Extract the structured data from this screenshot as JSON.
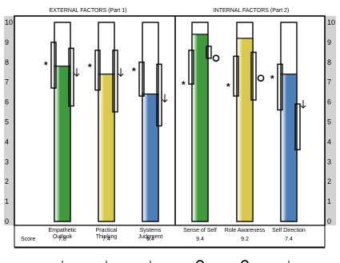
{
  "groups": [
    {
      "label": "EXTERNAL FACTORS (Part 1)"
    },
    {
      "label": "INTERNAL FACTORS (Part 2)"
    }
  ],
  "chart_data": {
    "type": "bar",
    "categories": [
      [
        "Empathetic",
        "Outlook"
      ],
      [
        "Practical",
        "Thinking"
      ],
      [
        "Systems",
        "Judgment"
      ],
      [
        "Sense of Self"
      ],
      [
        "Role Awareness"
      ],
      [
        "Self Direction"
      ]
    ],
    "values": [
      7.8,
      7.4,
      6.4,
      9.4,
      9.2,
      7.4
    ],
    "score_label": "Score",
    "score_texts": [
      "7.8",
      "7.4",
      "6.4",
      "9.4",
      "9.2",
      "7.4"
    ],
    "ylim": [
      0,
      10
    ],
    "yticks": [
      "0",
      "1",
      "2",
      "3",
      "4",
      "5",
      "6",
      "7",
      "8",
      "9",
      "10"
    ],
    "bar_colors": [
      "#3f9a3f",
      "#d9c94e",
      "#4f7fb8",
      "#3f9a3f",
      "#d9c94e",
      "#4f7fb8"
    ],
    "left_bracket": [
      [
        6.7,
        9.0
      ],
      [
        6.6,
        8.6
      ],
      [
        6.3,
        8.0
      ],
      [
        6.9,
        8.6
      ],
      [
        6.3,
        8.3
      ],
      [
        5.6,
        7.9
      ]
    ],
    "right_bracket": [
      [
        5.8,
        8.7
      ],
      [
        5.5,
        8.6
      ],
      [
        4.8,
        7.9
      ],
      [
        8.2,
        8.8
      ],
      [
        6.1,
        8.5
      ],
      [
        3.6,
        5.9
      ]
    ],
    "star_levels": [
      7.9,
      7.8,
      7.6,
      6.9,
      6.8,
      7.2
    ],
    "markers": [
      "arrow",
      "arrow",
      "arrow",
      "circle",
      "circle",
      "arrow"
    ],
    "marker_levels": [
      7.5,
      7.5,
      6.2,
      8.2,
      7.2,
      5.9
    ],
    "bottom_markers": [
      "arrow",
      "arrow",
      "arrow",
      "circle",
      "circle",
      "arrow"
    ]
  }
}
